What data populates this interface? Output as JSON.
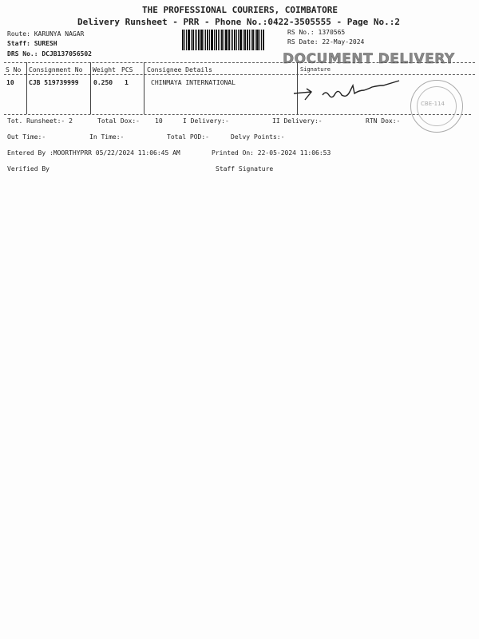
{
  "header": {
    "company": "THE PROFESSIONAL COURIERS, COIMBATORE",
    "subtitle": "Delivery Runsheet - PRR - Phone No.:0422-3505555 - Page No.:2"
  },
  "info": {
    "route": "Route: KARUNYA NAGAR",
    "staff": "Staff: SURESH",
    "drs": "DRS No.: DCJB137056502",
    "rs_no": "RS No.: 1370565",
    "rs_date": "RS Date: 22-May-2024"
  },
  "stamp": {
    "text": "DOCUMENT DELIVERY",
    "seal": "CBE-114"
  },
  "table": {
    "headers": [
      "S No",
      "Consignment No",
      "Weight",
      "PCS",
      "Consignee Details",
      "Signature"
    ],
    "rows": [
      [
        "10",
        "CJB 519739999",
        "0.250",
        "1",
        "CHINMAYA INTERNATIONAL"
      ]
    ]
  },
  "summary": {
    "tot_runsheet": "Tot. Runsheet:- 2",
    "total_dox": "Total Dox:-",
    "total_dox_val": "10",
    "i_delivery": "I Delivery:-",
    "ii_delivery": "II Delivery:-",
    "rtn_dox": "RTN Dox:-",
    "out_time": "Out Time:-",
    "in_time": "In Time:-",
    "total_pod": "Total POD:-",
    "delvy_points": "Delvy Points:-",
    "entered_by": "Entered By :MOORTHYPRR 05/22/2024 11:06:45 AM",
    "printed_on": "Printed On: 22-05-2024 11:06:53",
    "verified_by": "Verified By",
    "staff_signature": "Staff Signature"
  }
}
